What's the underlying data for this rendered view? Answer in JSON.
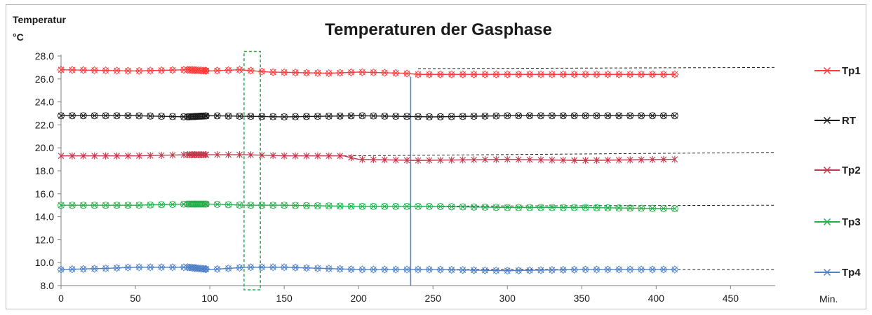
{
  "chart_data": {
    "type": "line",
    "title": "Temperaturen der Gasphase",
    "ylabel_line1": "Temperatur",
    "ylabel_line2": "°C",
    "xlabel": "Min.",
    "xlim": [
      0,
      480
    ],
    "ylim": [
      8.0,
      28.0
    ],
    "x_ticks": [
      0,
      50,
      100,
      150,
      200,
      250,
      300,
      350,
      400,
      450
    ],
    "y_ticks": [
      8.0,
      10.0,
      12.0,
      14.0,
      16.0,
      18.0,
      20.0,
      22.0,
      24.0,
      26.0,
      28.0
    ],
    "grid": false,
    "legend_position": "right",
    "series": [
      {
        "name": "Tp1",
        "color": "#ff3b3b",
        "marker": "x-diamond",
        "x": [
          0,
          50,
          85,
          100,
          120,
          140,
          180,
          200,
          230,
          240,
          300,
          350,
          413
        ],
        "y": [
          26.8,
          26.7,
          26.8,
          26.7,
          26.8,
          26.6,
          26.5,
          26.6,
          26.5,
          26.4,
          26.4,
          26.4,
          26.4
        ]
      },
      {
        "name": "RT",
        "color": "#1a1a1a",
        "marker": "x-circle",
        "x": [
          0,
          50,
          85,
          100,
          150,
          200,
          250,
          300,
          350,
          413
        ],
        "y": [
          22.8,
          22.8,
          22.7,
          22.8,
          22.7,
          22.8,
          22.7,
          22.8,
          22.8,
          22.8
        ]
      },
      {
        "name": "Tp2",
        "color": "#c0394b",
        "marker": "star",
        "x": [
          0,
          50,
          85,
          100,
          125,
          150,
          190,
          200,
          240,
          300,
          350,
          413
        ],
        "y": [
          19.3,
          19.3,
          19.4,
          19.4,
          19.4,
          19.3,
          19.3,
          19.0,
          18.9,
          19.0,
          18.9,
          19.0
        ]
      },
      {
        "name": "Tp3",
        "color": "#22b04b",
        "marker": "x-circle",
        "x": [
          0,
          50,
          85,
          100,
          125,
          150,
          200,
          250,
          300,
          350,
          413
        ],
        "y": [
          15.0,
          15.0,
          15.1,
          15.1,
          15.0,
          15.0,
          14.9,
          14.9,
          14.8,
          14.8,
          14.7
        ]
      },
      {
        "name": "Tp4",
        "color": "#4f81c7",
        "marker": "x-diamond",
        "x": [
          0,
          30,
          50,
          85,
          100,
          125,
          150,
          200,
          250,
          300,
          350,
          413
        ],
        "y": [
          9.4,
          9.5,
          9.6,
          9.6,
          9.4,
          9.6,
          9.6,
          9.4,
          9.4,
          9.3,
          9.4,
          9.4
        ]
      }
    ],
    "reference_lines": [
      {
        "color": "#222222",
        "style": "dashed",
        "x": [
          240,
          480
        ],
        "y": [
          26.9,
          27.0
        ]
      },
      {
        "color": "#222222",
        "style": "dashed",
        "x": [
          190,
          480
        ],
        "y": [
          19.3,
          19.6
        ]
      },
      {
        "color": "#222222",
        "style": "dashed",
        "x": [
          200,
          480
        ],
        "y": [
          14.9,
          15.0
        ]
      },
      {
        "color": "#222222",
        "style": "dashed",
        "x": [
          200,
          480
        ],
        "y": [
          9.4,
          9.4
        ]
      }
    ],
    "vertical_marker": {
      "x": 235,
      "y_top": 26.2,
      "color": "#4f81c7"
    },
    "highlight_box": {
      "x": [
        123,
        134
      ],
      "y": [
        8.0,
        28.4
      ],
      "color": "#22b04b",
      "style": "dashed"
    }
  }
}
